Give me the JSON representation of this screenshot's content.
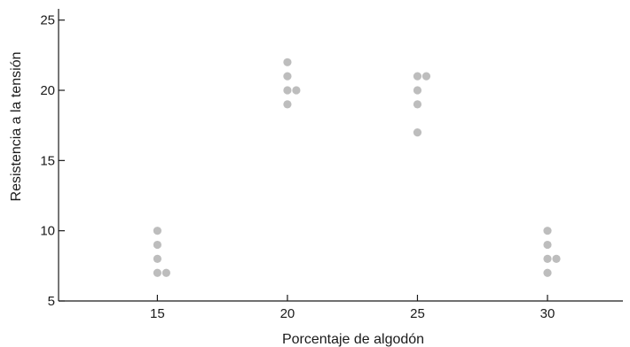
{
  "chart_data": {
    "type": "scatter",
    "title": "",
    "xlabel": "Porcentaje de algodón",
    "ylabel": "Resistencia a la tensión",
    "x_ticks": [
      15,
      20,
      25,
      30
    ],
    "y_ticks": [
      5,
      10,
      15,
      20,
      25
    ],
    "xlim": [
      11.2,
      32.9
    ],
    "ylim": [
      5,
      25.8
    ],
    "grid": false,
    "point_color": "#bdbdbd",
    "series": [
      {
        "points": [
          {
            "x": 15,
            "y": 7
          },
          {
            "x": 15,
            "y": 7
          },
          {
            "x": 15,
            "y": 8
          },
          {
            "x": 15,
            "y": 9
          },
          {
            "x": 15,
            "y": 10
          },
          {
            "x": 20,
            "y": 19
          },
          {
            "x": 20,
            "y": 20
          },
          {
            "x": 20,
            "y": 20
          },
          {
            "x": 20,
            "y": 21
          },
          {
            "x": 20,
            "y": 22
          },
          {
            "x": 25,
            "y": 17
          },
          {
            "x": 25,
            "y": 19
          },
          {
            "x": 25,
            "y": 20
          },
          {
            "x": 25,
            "y": 21
          },
          {
            "x": 25,
            "y": 21
          },
          {
            "x": 30,
            "y": 7
          },
          {
            "x": 30,
            "y": 8
          },
          {
            "x": 30,
            "y": 8
          },
          {
            "x": 30,
            "y": 9
          },
          {
            "x": 30,
            "y": 10
          }
        ]
      }
    ]
  }
}
